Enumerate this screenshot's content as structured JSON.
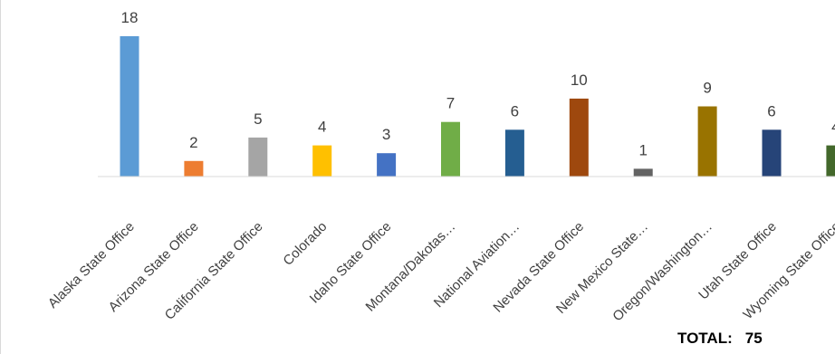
{
  "chart_data": {
    "type": "bar",
    "categories": [
      "Alaska State Office",
      "Arizona State Office",
      "California State Office",
      "Colorado",
      "Idaho State Office",
      "Montana/Dakotas…",
      "National Aviation…",
      "Nevada State Office",
      "New Mexico State…",
      "Oregon/Washington…",
      "Utah State Office",
      "Wyoming State Office"
    ],
    "values": [
      18,
      2,
      5,
      4,
      3,
      7,
      6,
      10,
      1,
      9,
      6,
      4
    ],
    "colors": [
      "#5b9bd5",
      "#ed7d31",
      "#a5a5a5",
      "#ffc000",
      "#4472c4",
      "#70ad47",
      "#255e91",
      "#9e480e",
      "#636363",
      "#997300",
      "#264478",
      "#43682b"
    ],
    "ylim": [
      0,
      20
    ],
    "grid": false,
    "legend": "none",
    "title": "",
    "xlabel": "",
    "ylabel": ""
  },
  "total": {
    "label": "TOTAL:",
    "value": "75"
  }
}
